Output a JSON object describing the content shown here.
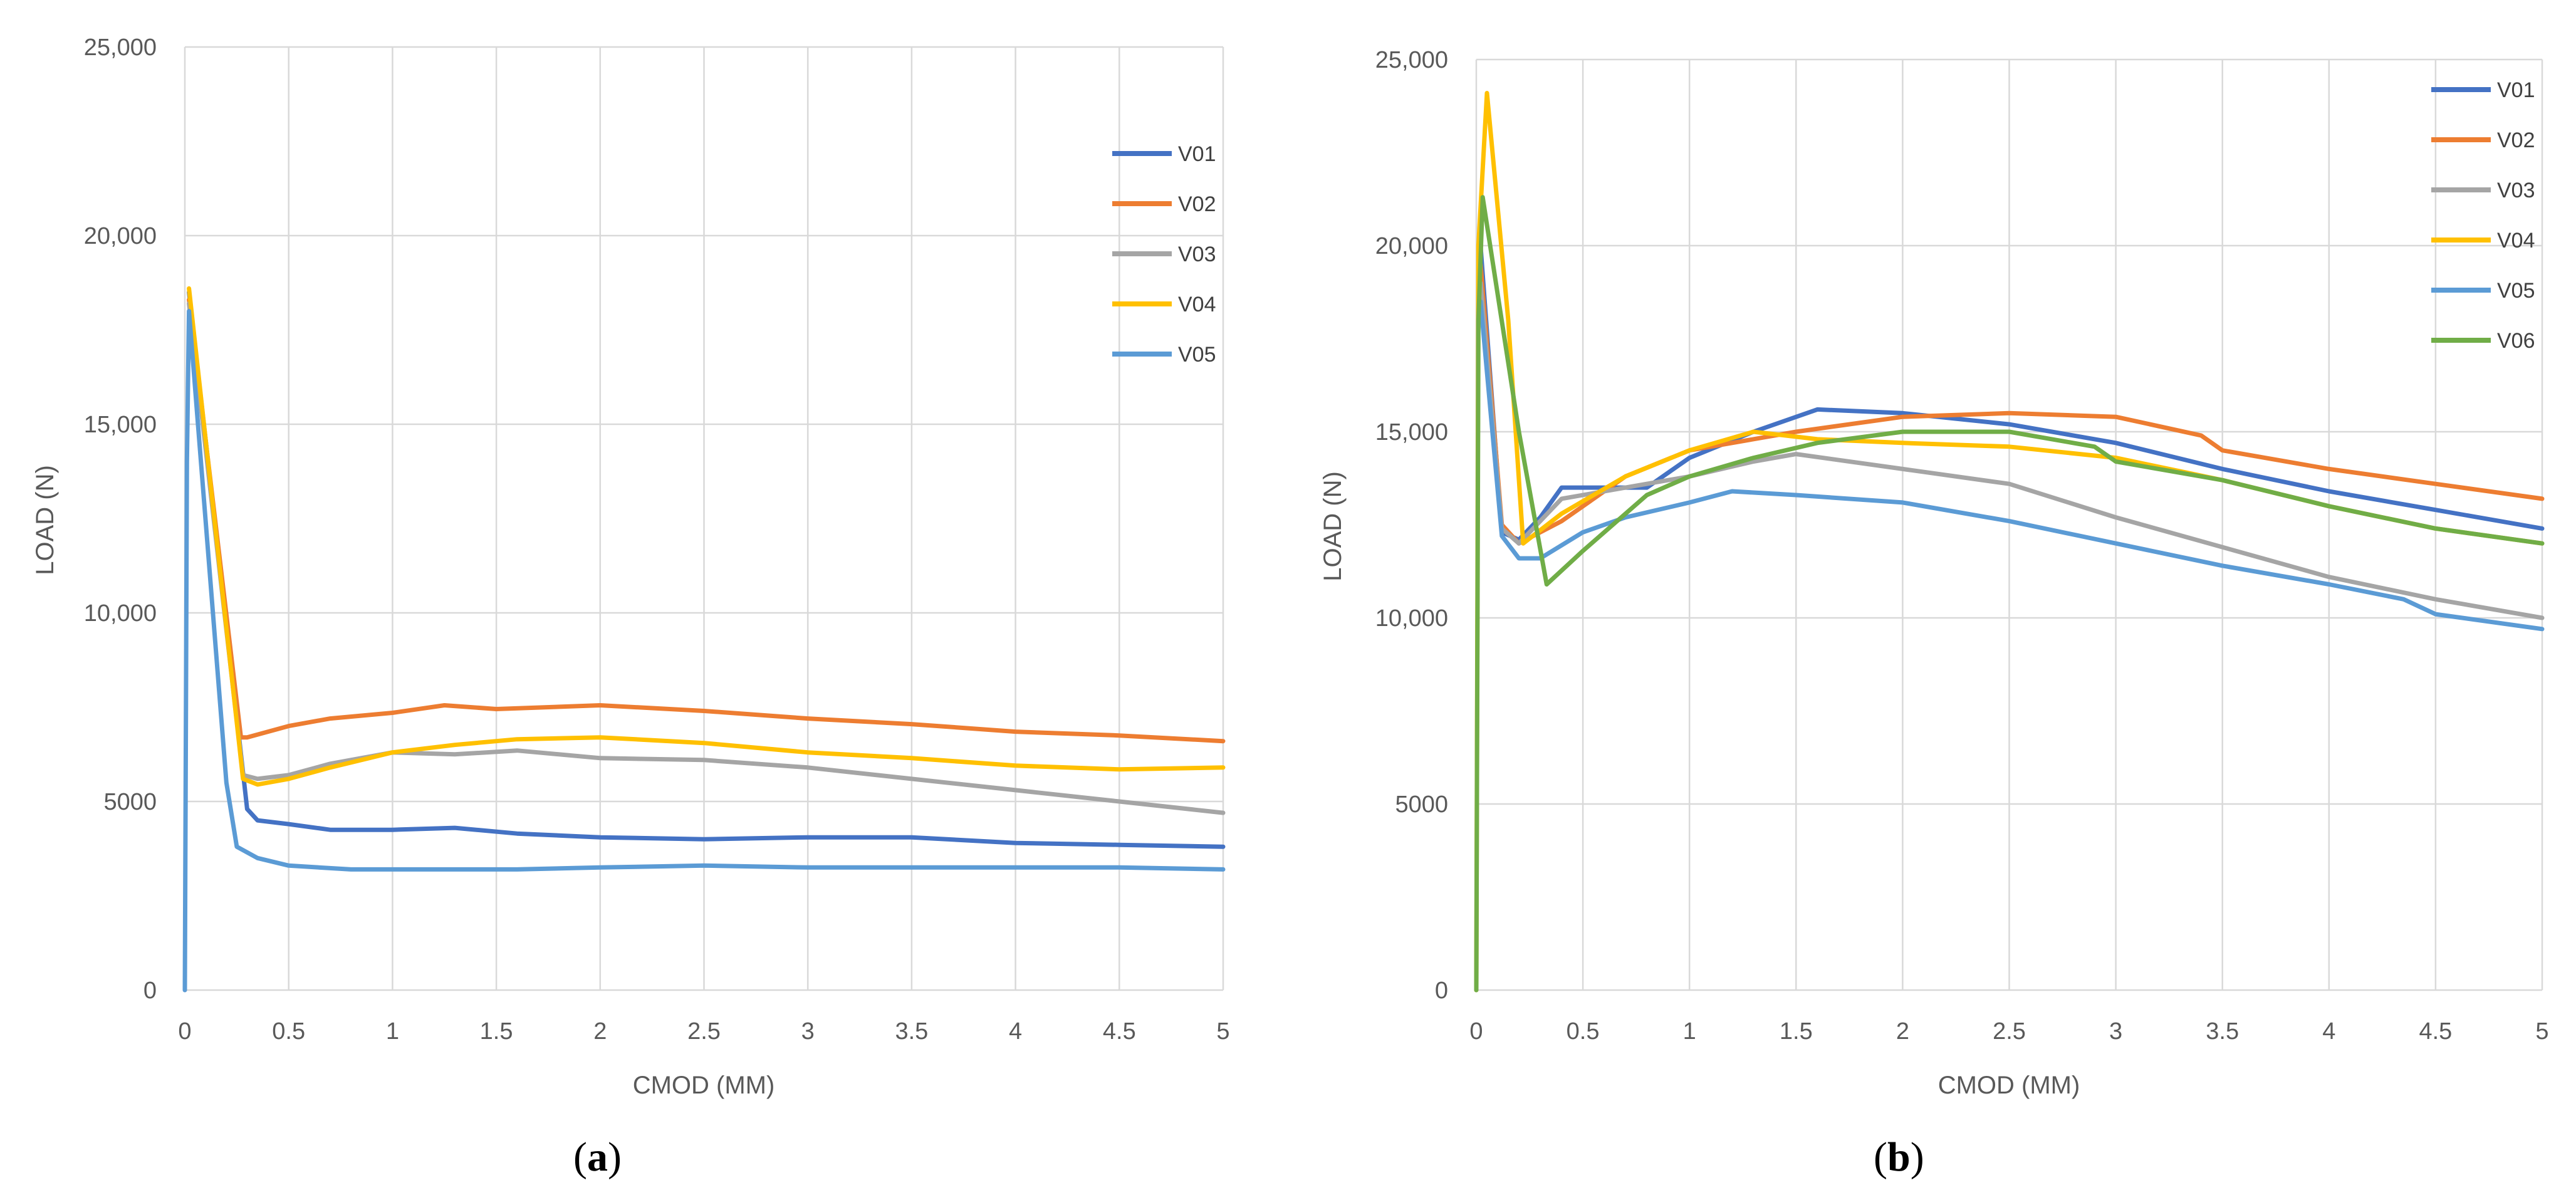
{
  "chart_data": [
    {
      "type": "line",
      "panel": "a",
      "caption_letter": "a",
      "title": "",
      "xlabel": "CMOD (MM)",
      "ylabel": "LOAD (N)",
      "xlim": [
        0,
        5
      ],
      "ylim": [
        0,
        25000
      ],
      "grid": true,
      "legend_position": "top-right",
      "x_tick_labels": [
        "0",
        "0.5",
        "1",
        "1.5",
        "2",
        "2.5",
        "3",
        "3.5",
        "4",
        "4.5",
        "5"
      ],
      "y_tick_labels": [
        "0",
        "5000",
        "10,000",
        "15,000",
        "20,000",
        "25,000"
      ],
      "series": [
        {
          "name": "V01",
          "color": "#4472C4",
          "x": [
            0.02,
            0.3,
            0.35,
            0.5,
            0.7,
            1.0,
            1.3,
            1.6,
            2.0,
            2.5,
            3.0,
            3.5,
            4.0,
            4.5,
            5.0
          ],
          "y": [
            18500,
            4800,
            4500,
            4400,
            4250,
            4250,
            4300,
            4150,
            4050,
            4000,
            4050,
            4050,
            3900,
            3850,
            3800
          ]
        },
        {
          "name": "V02",
          "color": "#ED7D31",
          "x": [
            0.02,
            0.27,
            0.3,
            0.5,
            0.7,
            1.0,
            1.25,
            1.5,
            2.0,
            2.5,
            3.0,
            3.5,
            4.0,
            4.5,
            5.0
          ],
          "y": [
            18300,
            6700,
            6700,
            7000,
            7200,
            7350,
            7550,
            7450,
            7550,
            7400,
            7200,
            7050,
            6850,
            6750,
            6600
          ]
        },
        {
          "name": "V03",
          "color": "#A5A5A5",
          "x": [
            0.02,
            0.28,
            0.35,
            0.5,
            0.7,
            1.0,
            1.3,
            1.6,
            2.0,
            2.5,
            3.0,
            3.5,
            4.0,
            4.5,
            5.0
          ],
          "y": [
            18200,
            5700,
            5600,
            5700,
            6000,
            6300,
            6250,
            6350,
            6150,
            6100,
            5900,
            5600,
            5300,
            5000,
            4700
          ]
        },
        {
          "name": "V04",
          "color": "#FFC000",
          "x": [
            0.02,
            0.28,
            0.35,
            0.5,
            0.7,
            1.0,
            1.3,
            1.6,
            2.0,
            2.5,
            3.0,
            3.5,
            4.0,
            4.5,
            5.0
          ],
          "y": [
            18600,
            5600,
            5450,
            5600,
            5900,
            6300,
            6500,
            6650,
            6700,
            6550,
            6300,
            6150,
            5950,
            5850,
            5900
          ]
        },
        {
          "name": "V05",
          "color": "#5B9BD5",
          "x": [
            0.0,
            0.01,
            0.02,
            0.2,
            0.25,
            0.35,
            0.5,
            0.8,
            1.2,
            1.6,
            2.0,
            2.5,
            3.0,
            3.5,
            4.0,
            4.5,
            5.0
          ],
          "y": [
            0,
            14000,
            18000,
            5500,
            3800,
            3500,
            3300,
            3200,
            3200,
            3200,
            3250,
            3300,
            3250,
            3250,
            3250,
            3250,
            3200
          ]
        }
      ]
    },
    {
      "type": "line",
      "panel": "b",
      "caption_letter": "b",
      "title": "",
      "xlabel": "CMOD (MM)",
      "ylabel": "LOAD (N)",
      "xlim": [
        0,
        5
      ],
      "ylim": [
        0,
        25000
      ],
      "grid": true,
      "legend_position": "top-right",
      "x_tick_labels": [
        "0",
        "0.5",
        "1",
        "1.5",
        "2",
        "2.5",
        "3",
        "3.5",
        "4",
        "4.5",
        "5"
      ],
      "y_tick_labels": [
        "0",
        "5000",
        "10,000",
        "15,000",
        "20,000",
        "25,000"
      ],
      "series": [
        {
          "name": "V01",
          "color": "#4472C4",
          "x": [
            0.02,
            0.12,
            0.2,
            0.3,
            0.4,
            0.6,
            0.8,
            1.0,
            1.3,
            1.6,
            2.0,
            2.5,
            3.0,
            3.5,
            4.0,
            4.5,
            5.0
          ],
          "y": [
            20000,
            12300,
            12100,
            12700,
            13500,
            13500,
            13500,
            14300,
            15000,
            15600,
            15500,
            15200,
            14700,
            14000,
            13400,
            12900,
            12400
          ]
        },
        {
          "name": "V02",
          "color": "#ED7D31",
          "x": [
            0.02,
            0.12,
            0.2,
            0.4,
            0.7,
            1.0,
            1.5,
            2.0,
            2.5,
            3.0,
            3.4,
            3.5,
            4.0,
            4.5,
            5.0
          ],
          "y": [
            19500,
            12500,
            12000,
            12600,
            13800,
            14500,
            15000,
            15400,
            15500,
            15400,
            14900,
            14500,
            14000,
            13600,
            13200
          ]
        },
        {
          "name": "V03",
          "color": "#A5A5A5",
          "x": [
            0.02,
            0.12,
            0.2,
            0.4,
            0.7,
            1.0,
            1.3,
            1.5,
            2.0,
            2.5,
            3.0,
            3.5,
            4.0,
            4.5,
            5.0
          ],
          "y": [
            19000,
            12400,
            12000,
            13200,
            13500,
            13800,
            14200,
            14400,
            14000,
            13600,
            12700,
            11900,
            11100,
            10500,
            10000
          ]
        },
        {
          "name": "V04",
          "color": "#FFC000",
          "x": [
            0.0,
            0.01,
            0.05,
            0.15,
            0.22,
            0.4,
            0.7,
            1.0,
            1.3,
            1.6,
            2.0,
            2.5,
            3.0,
            3.5,
            4.0,
            4.5,
            5.0
          ],
          "y": [
            0,
            20000,
            24100,
            18000,
            12000,
            12800,
            13800,
            14500,
            15000,
            14800,
            14700,
            14600,
            14300,
            13700,
            13000,
            12400,
            12000
          ]
        },
        {
          "name": "V05",
          "color": "#5B9BD5",
          "x": [
            0.02,
            0.12,
            0.2,
            0.3,
            0.5,
            0.7,
            1.0,
            1.2,
            1.5,
            2.0,
            2.5,
            3.0,
            3.5,
            4.0,
            4.35,
            4.5,
            5.0
          ],
          "y": [
            18500,
            12200,
            11600,
            11600,
            12300,
            12700,
            13100,
            13400,
            13300,
            13100,
            12600,
            12000,
            11400,
            10900,
            10500,
            10100,
            9700
          ]
        },
        {
          "name": "V06",
          "color": "#70AD47",
          "x": [
            0.0,
            0.01,
            0.03,
            0.2,
            0.33,
            0.5,
            0.8,
            1.0,
            1.3,
            1.6,
            2.0,
            2.5,
            2.9,
            3.0,
            3.5,
            4.0,
            4.5,
            5.0
          ],
          "y": [
            0,
            18000,
            21300,
            15000,
            10900,
            11800,
            13300,
            13800,
            14300,
            14700,
            15000,
            15000,
            14600,
            14200,
            13700,
            13000,
            12400,
            12000
          ]
        }
      ]
    }
  ]
}
